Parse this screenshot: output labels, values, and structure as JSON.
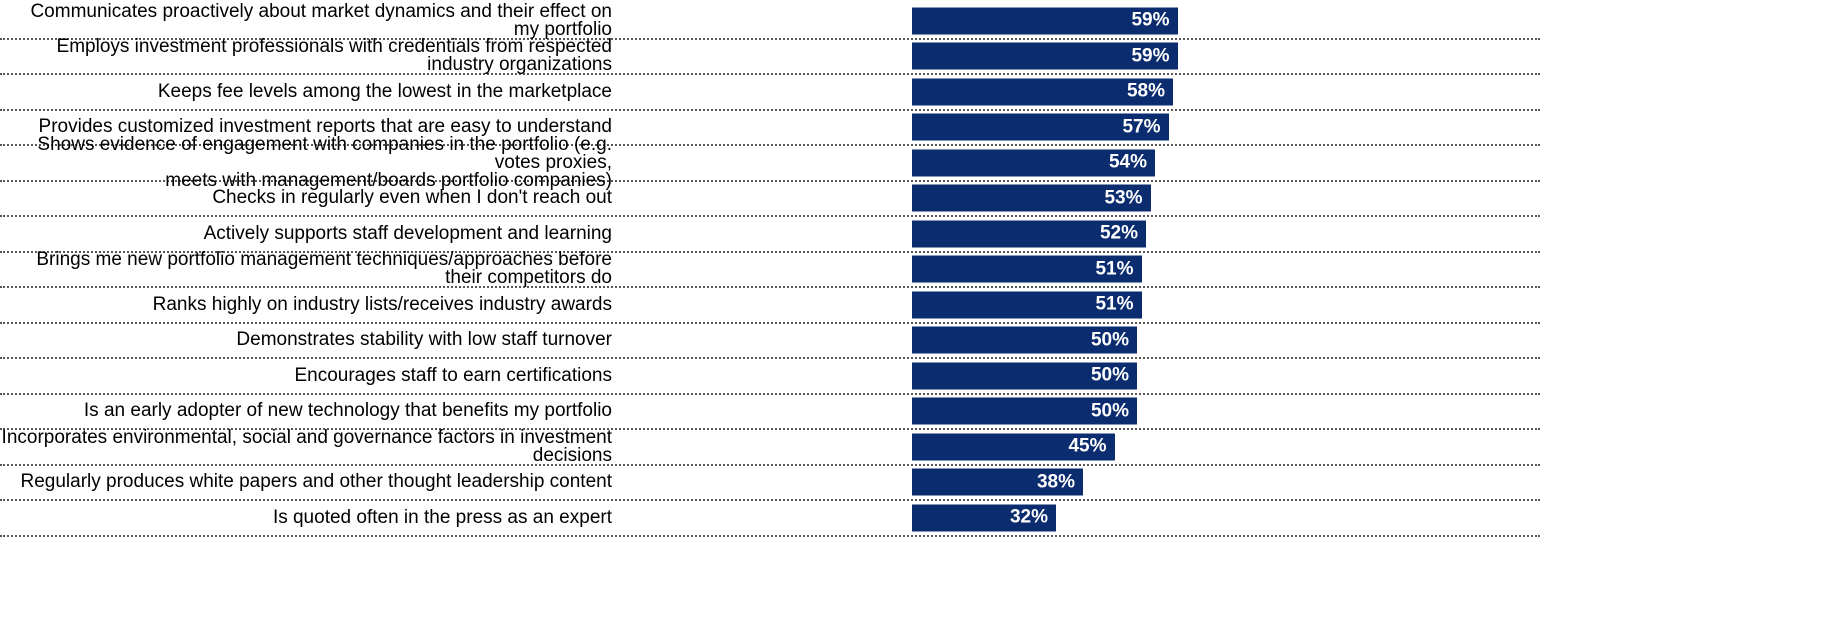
{
  "chart_data": {
    "type": "bar",
    "orientation": "horizontal",
    "color": "#0b2d6f",
    "categories": [
      "Communicates proactively about market dynamics and their effect on my portfolio",
      "Employs investment professionals with credentials from respected industry organizations",
      "Keeps fee levels among the lowest in the marketplace",
      "Provides customized investment reports that are easy to understand",
      "Shows evidence of engagement with companies in the portfolio (e.g. votes proxies,\nmeets with management/boards portfolio companies)",
      "Checks in regularly even when I don't reach out",
      "Actively supports staff development and learning",
      "Brings me new portfolio management techniques/approaches before their competitors do",
      "Ranks highly on industry lists/receives industry awards",
      "Demonstrates stability with low staff turnover",
      "Encourages staff to earn certifications",
      "Is an early adopter of new technology that benefits my portfolio",
      "Incorporates environmental, social and governance factors in investment decisions",
      "Regularly produces white papers and other thought leadership content",
      "Is quoted often in the press as an expert"
    ],
    "values": [
      59,
      59,
      58,
      57,
      54,
      53,
      52,
      51,
      51,
      50,
      50,
      50,
      45,
      38,
      32
    ],
    "value_labels": [
      "59%",
      "59%",
      "58%",
      "57%",
      "54%",
      "53%",
      "52%",
      "51%",
      "51%",
      "50%",
      "50%",
      "50%",
      "45%",
      "38%",
      "32%"
    ]
  }
}
